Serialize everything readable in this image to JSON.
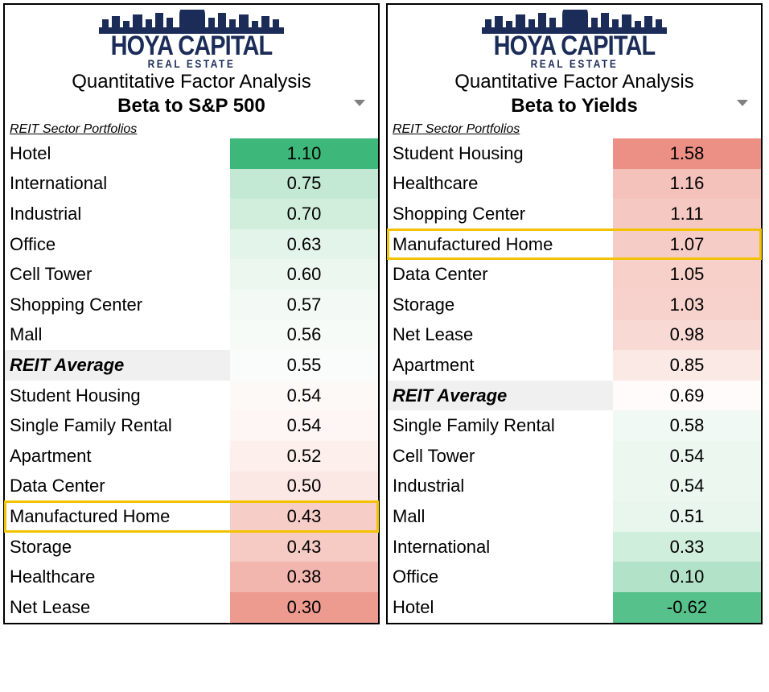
{
  "logo": {
    "main": "HOYA CAPITAL",
    "sub": "REAL ESTATE",
    "color": "#1b2c58"
  },
  "subtitle": "Quantitative Factor Analysis",
  "section_label": "REIT Sector Portfolios",
  "highlight_color": "#f2c200",
  "avg_bg": "#f0f0f0",
  "panels": [
    {
      "title": "Beta to S&P 500",
      "rows": [
        {
          "label": "Hotel",
          "value": "1.10",
          "bg": "#3eb77a",
          "avg": false,
          "hl": false
        },
        {
          "label": "International",
          "value": "0.75",
          "bg": "#c3e9d4",
          "avg": false,
          "hl": false
        },
        {
          "label": "Industrial",
          "value": "0.70",
          "bg": "#d1eedd",
          "avg": false,
          "hl": false
        },
        {
          "label": "Office",
          "value": "0.63",
          "bg": "#e3f4ea",
          "avg": false,
          "hl": false
        },
        {
          "label": "Cell Tower",
          "value": "0.60",
          "bg": "#ecf7f0",
          "avg": false,
          "hl": false
        },
        {
          "label": "Shopping Center",
          "value": "0.57",
          "bg": "#f3faf5",
          "avg": false,
          "hl": false
        },
        {
          "label": "Mall",
          "value": "0.56",
          "bg": "#f6fbf7",
          "avg": false,
          "hl": false
        },
        {
          "label": "REIT Average",
          "value": "0.55",
          "bg": "#f9fcfa",
          "avg": true,
          "hl": false
        },
        {
          "label": "Student Housing",
          "value": "0.54",
          "bg": "#fdf9f7",
          "avg": false,
          "hl": false
        },
        {
          "label": "Single Family Rental",
          "value": "0.54",
          "bg": "#fdf6f4",
          "avg": false,
          "hl": false
        },
        {
          "label": "Apartment",
          "value": "0.52",
          "bg": "#fcefec",
          "avg": false,
          "hl": false
        },
        {
          "label": "Data Center",
          "value": "0.50",
          "bg": "#fbe8e4",
          "avg": false,
          "hl": false
        },
        {
          "label": "Manufactured Home",
          "value": "0.43",
          "bg": "#f7cec7",
          "avg": false,
          "hl": true
        },
        {
          "label": "Storage",
          "value": "0.43",
          "bg": "#f6cbc4",
          "avg": false,
          "hl": false
        },
        {
          "label": "Healthcare",
          "value": "0.38",
          "bg": "#f2b6ae",
          "avg": false,
          "hl": false
        },
        {
          "label": "Net Lease",
          "value": "0.30",
          "bg": "#ed9a8f",
          "avg": false,
          "hl": false
        }
      ]
    },
    {
      "title": "Beta to Yields",
      "rows": [
        {
          "label": "Student Housing",
          "value": "1.58",
          "bg": "#ec8f84",
          "avg": false,
          "hl": false
        },
        {
          "label": "Healthcare",
          "value": "1.16",
          "bg": "#f4c2bb",
          "avg": false,
          "hl": false
        },
        {
          "label": "Shopping Center",
          "value": "1.11",
          "bg": "#f5c8c1",
          "avg": false,
          "hl": false
        },
        {
          "label": "Manufactured Home",
          "value": "1.07",
          "bg": "#f6cdc6",
          "avg": false,
          "hl": true
        },
        {
          "label": "Data Center",
          "value": "1.05",
          "bg": "#f7d0c9",
          "avg": false,
          "hl": false
        },
        {
          "label": "Storage",
          "value": "1.03",
          "bg": "#f7d2cc",
          "avg": false,
          "hl": false
        },
        {
          "label": "Net Lease",
          "value": "0.98",
          "bg": "#f8d9d3",
          "avg": false,
          "hl": false
        },
        {
          "label": "Apartment",
          "value": "0.85",
          "bg": "#fbe9e5",
          "avg": false,
          "hl": false
        },
        {
          "label": "REIT Average",
          "value": "0.69",
          "bg": "#fefbfa",
          "avg": true,
          "hl": false
        },
        {
          "label": "Single Family Rental",
          "value": "0.58",
          "bg": "#f1f9f4",
          "avg": false,
          "hl": false
        },
        {
          "label": "Cell Tower",
          "value": "0.54",
          "bg": "#ecf7f0",
          "avg": false,
          "hl": false
        },
        {
          "label": "Industrial",
          "value": "0.54",
          "bg": "#ecf7f0",
          "avg": false,
          "hl": false
        },
        {
          "label": "Mall",
          "value": "0.51",
          "bg": "#e8f6ed",
          "avg": false,
          "hl": false
        },
        {
          "label": "International",
          "value": "0.33",
          "bg": "#d0eedc",
          "avg": false,
          "hl": false
        },
        {
          "label": "Office",
          "value": "0.10",
          "bg": "#b2e2c7",
          "avg": false,
          "hl": false
        },
        {
          "label": "Hotel",
          "value": "-0.62",
          "bg": "#57c18b",
          "avg": false,
          "hl": false
        }
      ]
    }
  ]
}
